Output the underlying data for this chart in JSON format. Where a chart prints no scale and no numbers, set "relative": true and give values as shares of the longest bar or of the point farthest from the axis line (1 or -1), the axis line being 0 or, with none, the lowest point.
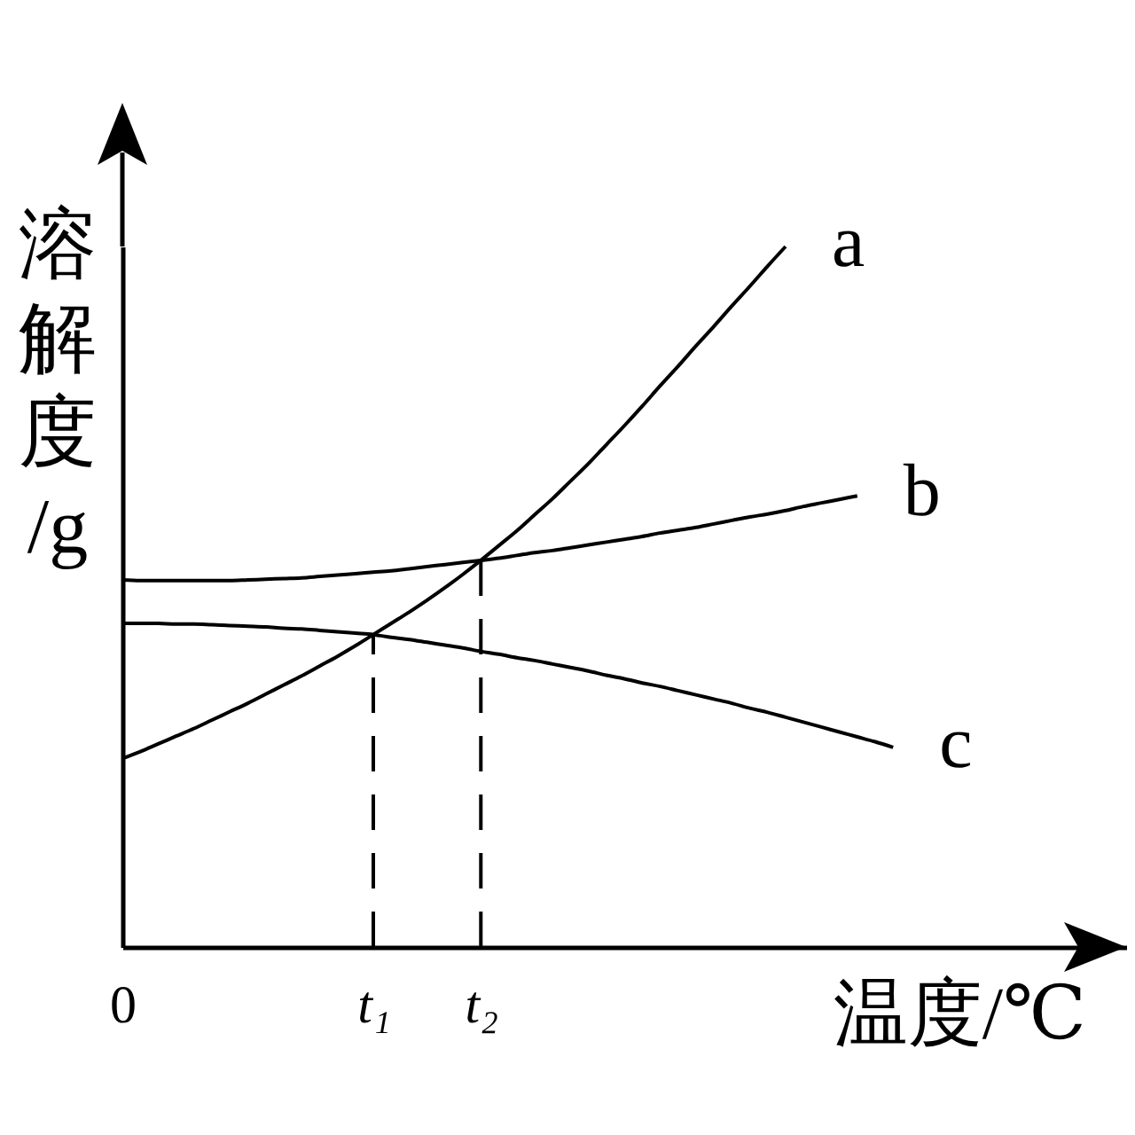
{
  "chart_data": {
    "type": "line",
    "xlabel": "温度/℃",
    "ylabel": "溶解度/g",
    "relative": true,
    "categories": [
      "0",
      null,
      null,
      null,
      null,
      null,
      null,
      null,
      null,
      null,
      null,
      null,
      null,
      null,
      "t₁",
      null,
      null,
      null,
      null,
      null,
      "t₂",
      null,
      null,
      null,
      null,
      null,
      null,
      null,
      null,
      null,
      null,
      null,
      null,
      null,
      null,
      null,
      null,
      null,
      null,
      null,
      null,
      null,
      null,
      null,
      null,
      null,
      null,
      null,
      null,
      null,
      null,
      null,
      null,
      null,
      null,
      null,
      null
    ],
    "series": [
      {
        "name": "a",
        "color": "#000000",
        "values": [
          0.269,
          0.279,
          0.29,
          0.301,
          0.312,
          0.324,
          0.336,
          0.348,
          0.361,
          0.374,
          0.387,
          0.401,
          0.415,
          0.43,
          0.446,
          0.462,
          0.478,
          0.495,
          0.513,
          0.532,
          0.552,
          0.573,
          0.594,
          0.617,
          0.64,
          0.665,
          0.69,
          0.717,
          0.744,
          0.772,
          0.801,
          0.829,
          0.858,
          0.886,
          0.915,
          0.943,
          0.972,
          1,
          null,
          null,
          null,
          null,
          null,
          null,
          null,
          null,
          null,
          null,
          null,
          null,
          null,
          null,
          null,
          null,
          null,
          null,
          null
        ]
      },
      {
        "name": "b",
        "color": "#000000",
        "values": [
          0.524,
          0.523,
          0.523,
          0.523,
          0.523,
          0.523,
          0.523,
          0.524,
          0.525,
          0.526,
          0.527,
          0.529,
          0.531,
          0.533,
          0.535,
          0.537,
          0.54,
          0.543,
          0.546,
          0.549,
          0.552,
          0.555,
          0.559,
          0.563,
          0.566,
          0.57,
          0.574,
          0.578,
          0.582,
          0.586,
          0.591,
          0.595,
          0.599,
          0.604,
          0.609,
          0.614,
          0.618,
          0.623,
          0.629,
          0.634,
          0.639,
          0.644,
          null,
          null,
          null,
          null,
          null,
          null,
          null,
          null,
          null,
          null,
          null,
          null,
          null,
          null,
          null
        ]
      },
      {
        "name": "c",
        "color": "#000000",
        "values": [
          0.462,
          0.462,
          0.462,
          0.461,
          0.461,
          0.46,
          0.459,
          0.458,
          0.457,
          0.455,
          0.454,
          0.452,
          0.45,
          0.448,
          0.446,
          0.442,
          0.439,
          0.435,
          0.431,
          0.427,
          0.422,
          0.418,
          0.413,
          0.409,
          0.404,
          0.399,
          0.394,
          0.388,
          0.383,
          0.377,
          0.372,
          0.366,
          0.36,
          0.354,
          0.348,
          0.341,
          0.335,
          0.328,
          0.321,
          0.314,
          0.307,
          0.3,
          0.293,
          0.285,
          null,
          null,
          null,
          null,
          null,
          null,
          null,
          null,
          null,
          null,
          null,
          null,
          null
        ]
      }
    ],
    "ref_lines": [
      {
        "axis": "x",
        "value": "t₁",
        "color": "#000000",
        "line_style": "dashed"
      },
      {
        "axis": "x",
        "value": "t₂",
        "color": "#000000",
        "line_style": "dashed"
      }
    ]
  }
}
